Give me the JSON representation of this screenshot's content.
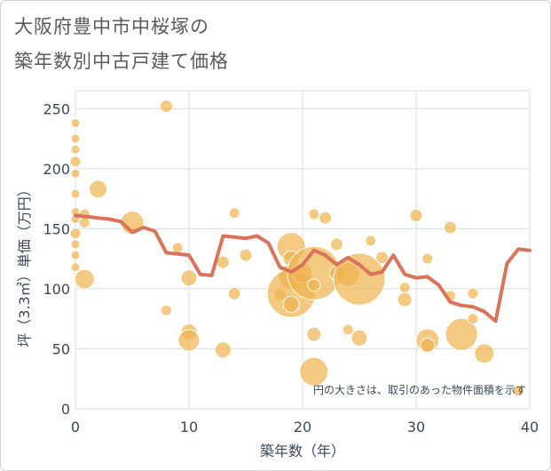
{
  "title": {
    "line1": "大阪府豊中市中桜塚の",
    "line2": "築年数別中古戸建て価格"
  },
  "colors": {
    "bubble": "#F0B24D",
    "bubble_stroke": "#FFFFFF",
    "line": "#D9735A",
    "grid": "#D8DEE6",
    "plot_bg": "#FFFFFF"
  },
  "chart_data": {
    "type": "scatter",
    "xlabel": "築年数（年）",
    "ylabel": "坪（3.3㎡）単価（万円）",
    "xlim": [
      0,
      40
    ],
    "ylim": [
      0,
      265
    ],
    "xticks": [
      0,
      10,
      20,
      30,
      40
    ],
    "yticks": [
      0,
      50,
      100,
      150,
      200,
      250
    ],
    "grid": true,
    "note": "円の大きさは、取引のあった物件面積を示す",
    "bubbles": [
      {
        "x": 0,
        "y": 238,
        "s": 5
      },
      {
        "x": 0,
        "y": 225,
        "s": 5
      },
      {
        "x": 0,
        "y": 216,
        "s": 5
      },
      {
        "x": 0,
        "y": 206,
        "s": 6
      },
      {
        "x": 0,
        "y": 196,
        "s": 5
      },
      {
        "x": 0,
        "y": 179,
        "s": 5
      },
      {
        "x": 0,
        "y": 164,
        "s": 5
      },
      {
        "x": 0,
        "y": 158,
        "s": 5
      },
      {
        "x": 0,
        "y": 146,
        "s": 6
      },
      {
        "x": 0,
        "y": 137,
        "s": 5
      },
      {
        "x": 0,
        "y": 128,
        "s": 5
      },
      {
        "x": 0,
        "y": 118,
        "s": 5
      },
      {
        "x": 0.8,
        "y": 162,
        "s": 6
      },
      {
        "x": 0.8,
        "y": 155,
        "s": 6
      },
      {
        "x": 0.8,
        "y": 108,
        "s": 11
      },
      {
        "x": 2,
        "y": 183,
        "s": 10
      },
      {
        "x": 5,
        "y": 155,
        "s": 13
      },
      {
        "x": 8,
        "y": 252,
        "s": 7
      },
      {
        "x": 8,
        "y": 82,
        "s": 6
      },
      {
        "x": 9,
        "y": 134,
        "s": 6
      },
      {
        "x": 10,
        "y": 109,
        "s": 9
      },
      {
        "x": 10,
        "y": 64,
        "s": 9
      },
      {
        "x": 10,
        "y": 57,
        "s": 12
      },
      {
        "x": 13,
        "y": 122,
        "s": 7
      },
      {
        "x": 13,
        "y": 49,
        "s": 9
      },
      {
        "x": 14,
        "y": 163,
        "s": 6
      },
      {
        "x": 14,
        "y": 96,
        "s": 7
      },
      {
        "x": 15,
        "y": 128,
        "s": 7
      },
      {
        "x": 18,
        "y": 95,
        "s": 7
      },
      {
        "x": 19,
        "y": 135,
        "s": 16
      },
      {
        "x": 19,
        "y": 125,
        "s": 9
      },
      {
        "x": 19,
        "y": 110,
        "s": 14
      },
      {
        "x": 19,
        "y": 96,
        "s": 27
      },
      {
        "x": 19,
        "y": 87,
        "s": 9
      },
      {
        "x": 20,
        "y": 113,
        "s": 11
      },
      {
        "x": 21,
        "y": 162,
        "s": 6
      },
      {
        "x": 21,
        "y": 113,
        "s": 30
      },
      {
        "x": 21,
        "y": 103,
        "s": 7
      },
      {
        "x": 21,
        "y": 62,
        "s": 8
      },
      {
        "x": 21,
        "y": 31,
        "s": 16
      },
      {
        "x": 22,
        "y": 159,
        "s": 7
      },
      {
        "x": 23,
        "y": 137,
        "s": 7
      },
      {
        "x": 23,
        "y": 113,
        "s": 8
      },
      {
        "x": 24,
        "y": 112,
        "s": 13
      },
      {
        "x": 24,
        "y": 66,
        "s": 6
      },
      {
        "x": 25,
        "y": 108,
        "s": 29
      },
      {
        "x": 25,
        "y": 59,
        "s": 9
      },
      {
        "x": 26,
        "y": 140,
        "s": 6
      },
      {
        "x": 27,
        "y": 126,
        "s": 7
      },
      {
        "x": 29,
        "y": 101,
        "s": 6
      },
      {
        "x": 29,
        "y": 91,
        "s": 8
      },
      {
        "x": 30,
        "y": 161,
        "s": 7
      },
      {
        "x": 31,
        "y": 125,
        "s": 6
      },
      {
        "x": 31,
        "y": 57,
        "s": 13
      },
      {
        "x": 31,
        "y": 53,
        "s": 8
      },
      {
        "x": 33,
        "y": 151,
        "s": 7
      },
      {
        "x": 33,
        "y": 94,
        "s": 6
      },
      {
        "x": 34,
        "y": 62,
        "s": 18
      },
      {
        "x": 35,
        "y": 96,
        "s": 6
      },
      {
        "x": 35,
        "y": 75,
        "s": 6
      },
      {
        "x": 36,
        "y": 46,
        "s": 11
      },
      {
        "x": 39,
        "y": 15,
        "s": 6
      }
    ],
    "series": [
      {
        "x": [
          0,
          1,
          2,
          3,
          4,
          5,
          6,
          7,
          8,
          9,
          10,
          11,
          12,
          13,
          14,
          15,
          16,
          17,
          18,
          19,
          20,
          21,
          22,
          23,
          24,
          25,
          26,
          27,
          28,
          29,
          30,
          31,
          32,
          33,
          34,
          35,
          36,
          37,
          38,
          39,
          40
        ],
        "values": [
          161,
          160,
          159,
          158,
          156,
          147,
          151,
          148,
          130,
          129,
          128,
          112,
          111,
          144,
          143,
          142,
          144,
          138,
          118,
          114,
          120,
          132,
          128,
          120,
          126,
          120,
          112,
          114,
          128,
          112,
          109,
          110,
          103,
          89,
          86,
          85,
          81,
          73,
          121,
          133,
          132
        ]
      }
    ]
  }
}
